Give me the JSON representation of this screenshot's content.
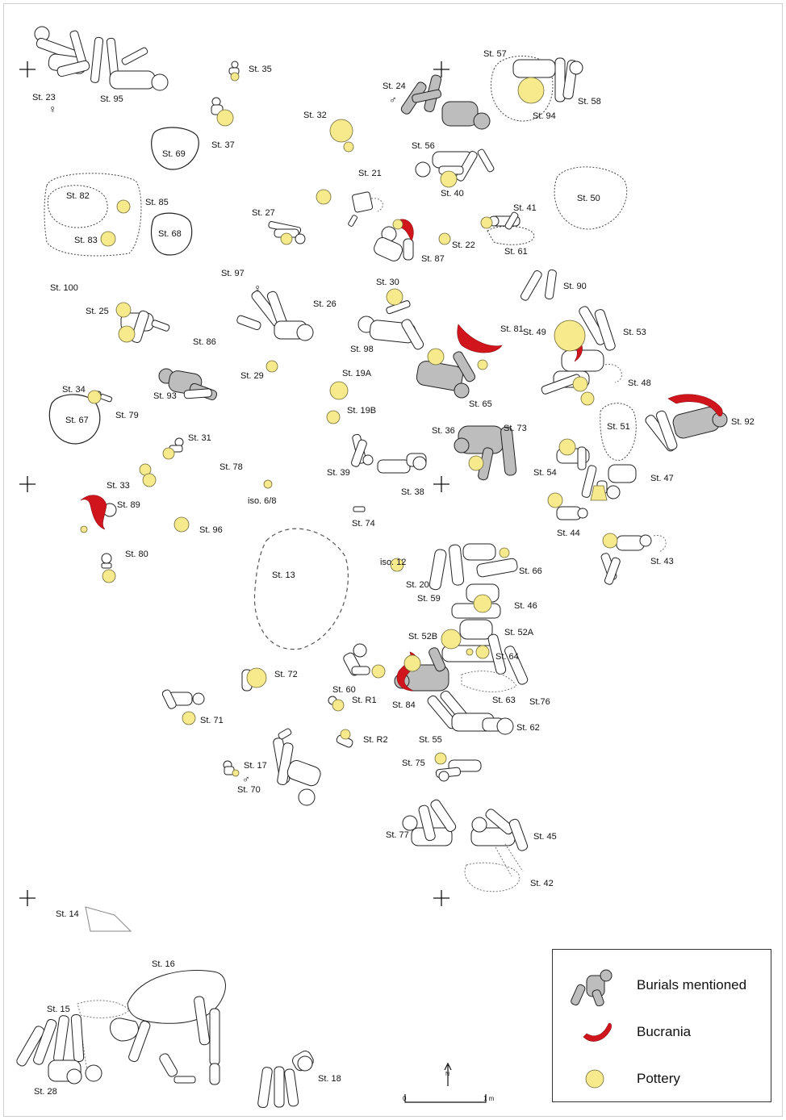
{
  "labels": [
    {
      "id": "st23",
      "text": "St. 23"
    },
    {
      "id": "st95",
      "text": "St. 95"
    },
    {
      "id": "st35",
      "text": "St. 35"
    },
    {
      "id": "st37",
      "text": "St. 37"
    },
    {
      "id": "st69",
      "text": "St. 69"
    },
    {
      "id": "st32",
      "text": "St. 32"
    },
    {
      "id": "st24",
      "text": "St. 24"
    },
    {
      "id": "st57",
      "text": "St. 57"
    },
    {
      "id": "st58",
      "text": "St. 58"
    },
    {
      "id": "st94",
      "text": "St. 94"
    },
    {
      "id": "st56",
      "text": "St. 56"
    },
    {
      "id": "st21",
      "text": "St. 21"
    },
    {
      "id": "st40",
      "text": "St. 40"
    },
    {
      "id": "st50",
      "text": "St. 50"
    },
    {
      "id": "st82",
      "text": "St. 82"
    },
    {
      "id": "st85",
      "text": "St. 85"
    },
    {
      "id": "st68",
      "text": "St. 68"
    },
    {
      "id": "st83",
      "text": "St. 83"
    },
    {
      "id": "st27",
      "text": "St. 27"
    },
    {
      "id": "st41",
      "text": "St. 41"
    },
    {
      "id": "st22",
      "text": "St. 22"
    },
    {
      "id": "st61",
      "text": "St. 61"
    },
    {
      "id": "st87",
      "text": "St. 87"
    },
    {
      "id": "st97",
      "text": "St. 97"
    },
    {
      "id": "st100",
      "text": "St. 100"
    },
    {
      "id": "st30",
      "text": "St. 30"
    },
    {
      "id": "st90",
      "text": "St. 90"
    },
    {
      "id": "st26",
      "text": "St. 26"
    },
    {
      "id": "st25",
      "text": "St. 25"
    },
    {
      "id": "st81",
      "text": "St. 81"
    },
    {
      "id": "st49",
      "text": "St. 49"
    },
    {
      "id": "st53",
      "text": "St. 53"
    },
    {
      "id": "st86",
      "text": "St. 86"
    },
    {
      "id": "st98",
      "text": "St. 98"
    },
    {
      "id": "st29",
      "text": "St. 29"
    },
    {
      "id": "st19a",
      "text": "St. 19A"
    },
    {
      "id": "st48",
      "text": "St. 48"
    },
    {
      "id": "st65",
      "text": "St. 65"
    },
    {
      "id": "st93",
      "text": "St. 93"
    },
    {
      "id": "st34",
      "text": "St. 34"
    },
    {
      "id": "st79",
      "text": "St. 79"
    },
    {
      "id": "st19b",
      "text": "St. 19B"
    },
    {
      "id": "st92",
      "text": "St. 92"
    },
    {
      "id": "st67",
      "text": "St. 67"
    },
    {
      "id": "st36",
      "text": "St. 36"
    },
    {
      "id": "st73",
      "text": "St. 73"
    },
    {
      "id": "st51",
      "text": "St. 51"
    },
    {
      "id": "st31",
      "text": "St. 31"
    },
    {
      "id": "st78",
      "text": "St. 78"
    },
    {
      "id": "st39",
      "text": "St. 39"
    },
    {
      "id": "st54",
      "text": "St. 54"
    },
    {
      "id": "st33",
      "text": "St. 33"
    },
    {
      "id": "st38",
      "text": "St. 38"
    },
    {
      "id": "st47",
      "text": "St. 47"
    },
    {
      "id": "iso68",
      "text": "iso. 6/8"
    },
    {
      "id": "st89",
      "text": "St. 89"
    },
    {
      "id": "st74",
      "text": "St. 74"
    },
    {
      "id": "st44",
      "text": "St. 44"
    },
    {
      "id": "st96",
      "text": "St. 96"
    },
    {
      "id": "st80",
      "text": "St. 80"
    },
    {
      "id": "iso12",
      "text": "iso. 12"
    },
    {
      "id": "st66",
      "text": "St. 66"
    },
    {
      "id": "st43",
      "text": "St. 43"
    },
    {
      "id": "st13",
      "text": "St. 13"
    },
    {
      "id": "st20",
      "text": "St. 20"
    },
    {
      "id": "st59",
      "text": "St. 59"
    },
    {
      "id": "st46",
      "text": "St. 46"
    },
    {
      "id": "st52a",
      "text": "St. 52A"
    },
    {
      "id": "st52b",
      "text": "St. 52B"
    },
    {
      "id": "st64",
      "text": "St. 64"
    },
    {
      "id": "st72",
      "text": "St. 72"
    },
    {
      "id": "st60",
      "text": "St. 60"
    },
    {
      "id": "st63",
      "text": "St. 63"
    },
    {
      "id": "st76",
      "text": "St.76"
    },
    {
      "id": "st84",
      "text": "St. 84"
    },
    {
      "id": "str1",
      "text": "St. R1"
    },
    {
      "id": "st71",
      "text": "St. 71"
    },
    {
      "id": "st62",
      "text": "St. 62"
    },
    {
      "id": "st55",
      "text": "St. 55"
    },
    {
      "id": "str2",
      "text": "St. R2"
    },
    {
      "id": "st17",
      "text": "St. 17"
    },
    {
      "id": "st75",
      "text": "St. 75"
    },
    {
      "id": "st70",
      "text": "St. 70"
    },
    {
      "id": "st77",
      "text": "St. 77"
    },
    {
      "id": "st45",
      "text": "St. 45"
    },
    {
      "id": "st42",
      "text": "St. 42"
    },
    {
      "id": "st14",
      "text": "St. 14"
    },
    {
      "id": "st16",
      "text": "St. 16"
    },
    {
      "id": "st15",
      "text": "St. 15"
    },
    {
      "id": "st28",
      "text": "St. 28"
    },
    {
      "id": "st18",
      "text": "St. 18"
    }
  ],
  "sex_symbols": {
    "female": "♀",
    "male": "♂"
  },
  "scale_bar": {
    "start": "0",
    "end": "1 m",
    "north": "N"
  },
  "legend": [
    {
      "label": "Burials mentioned",
      "icon": "grey-burial-icon"
    },
    {
      "label": "Bucrania",
      "icon": "bucrania-icon"
    },
    {
      "label": "Pottery",
      "icon": "pottery-icon"
    }
  ],
  "colors": {
    "pottery": "#f7ea8c",
    "bucrania": "#d0161c",
    "burial_grey": "#bdbdbd",
    "outline": "#222222"
  }
}
